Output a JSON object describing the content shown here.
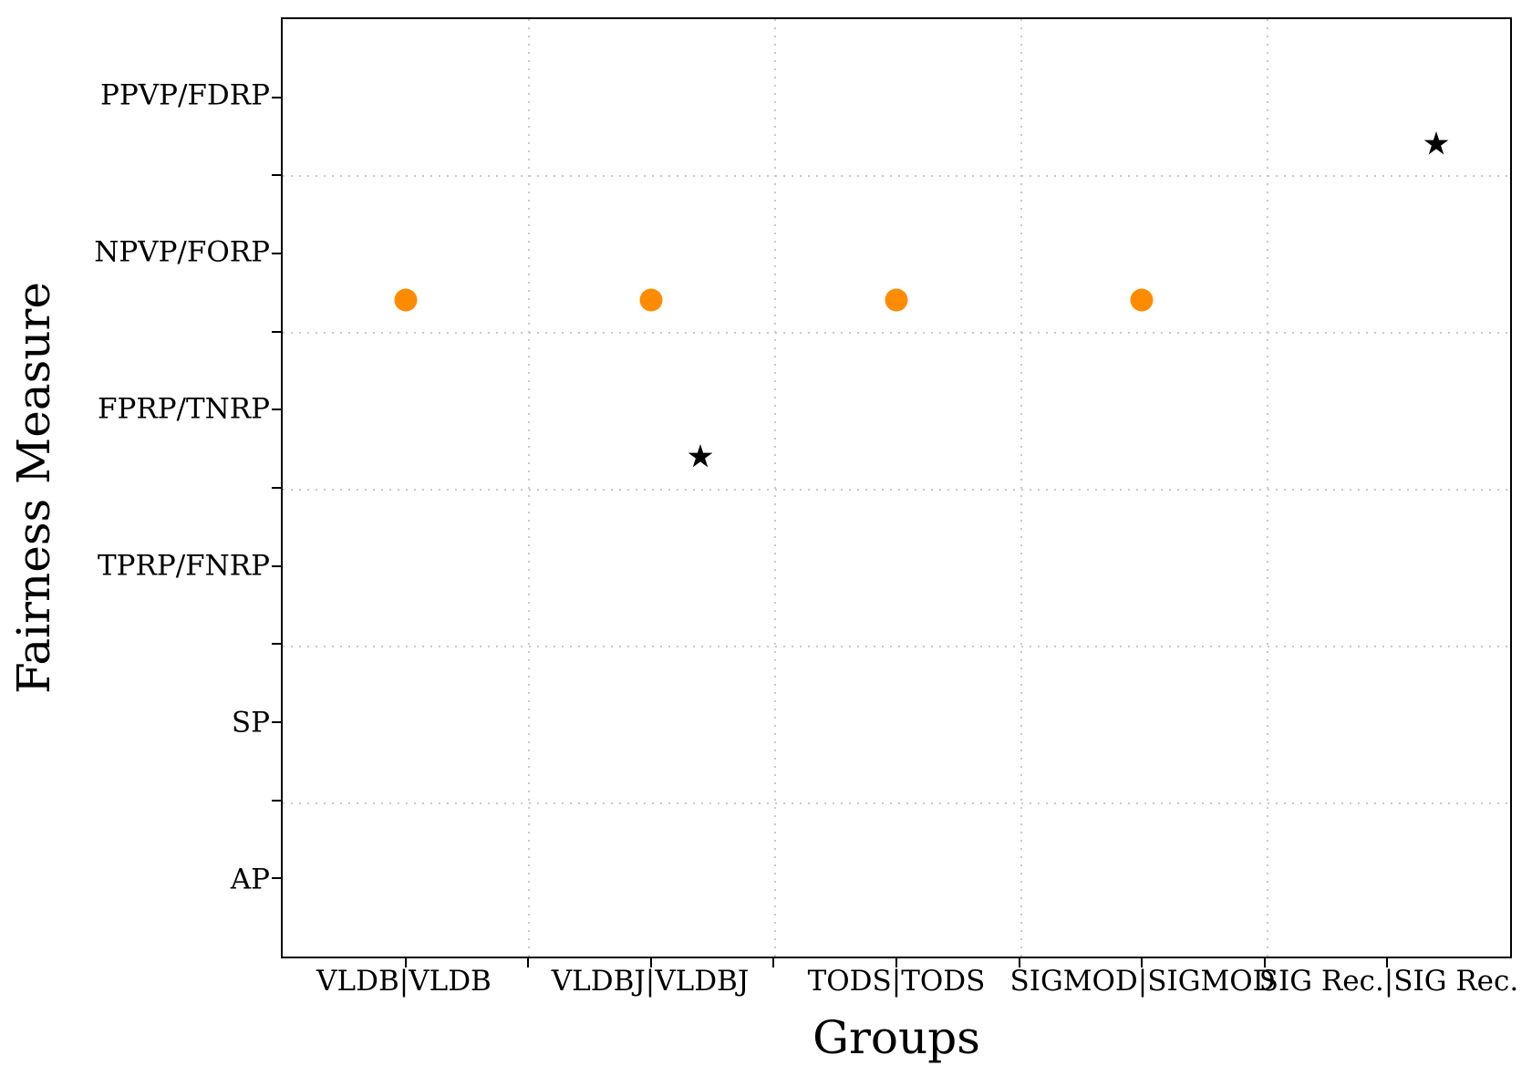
{
  "figure": {
    "background_color": "#ffffff",
    "text_color": "#000000",
    "spine_color": "#000000",
    "grid_color": "#c9c9c9",
    "accent_orange": "#FF8C00"
  },
  "chart_data": {
    "type": "scatter",
    "title": "",
    "xlabel": "Groups",
    "ylabel": "Fairness Measure",
    "x_categories": [
      "VLDB|VLDB",
      "VLDBJ|VLDBJ",
      "TODS|TODS",
      "SIGMOD|SIGMOD",
      "SIG Rec.|SIG Rec."
    ],
    "y_categories": [
      "PPVP/FDRP",
      "NPVP/FORP",
      "FPRP/TNRP",
      "TPRP/FNRP",
      "SP",
      "AP"
    ],
    "axis_orientation": "y-categories listed top to bottom",
    "grid": {
      "enabled": true,
      "style": "dotted",
      "position": "minor-ticks-between-categories"
    },
    "legend_position": "none",
    "series": [
      {
        "name": "circle-markers",
        "marker": "circle",
        "color": "#FF8C00",
        "marker_size_px": 25,
        "points": [
          {
            "group": "VLDB|VLDB",
            "group_index": 0,
            "measure": "NPVP/FORP",
            "measure_index": 1,
            "x_offset": 0.0,
            "y_offset": 0.3
          },
          {
            "group": "VLDBJ|VLDBJ",
            "group_index": 1,
            "measure": "NPVP/FORP",
            "measure_index": 1,
            "x_offset": 0.0,
            "y_offset": 0.3
          },
          {
            "group": "TODS|TODS",
            "group_index": 2,
            "measure": "NPVP/FORP",
            "measure_index": 1,
            "x_offset": 0.0,
            "y_offset": 0.3
          },
          {
            "group": "SIGMOD|SIGMOD",
            "group_index": 3,
            "measure": "NPVP/FORP",
            "measure_index": 1,
            "x_offset": 0.0,
            "y_offset": 0.3
          }
        ]
      },
      {
        "name": "star-markers",
        "marker": "star",
        "color": "#000000",
        "marker_size_px": 28,
        "points": [
          {
            "group": "VLDBJ|VLDBJ",
            "group_index": 1,
            "measure": "FPRP/TNRP",
            "measure_index": 2,
            "x_offset": 0.2,
            "y_offset": 0.3
          },
          {
            "group": "SIG Rec.|SIG Rec.",
            "group_index": 4,
            "measure": "PPVP/FDRP",
            "measure_index": 0,
            "x_offset": 0.2,
            "y_offset": 0.3
          }
        ]
      }
    ]
  }
}
